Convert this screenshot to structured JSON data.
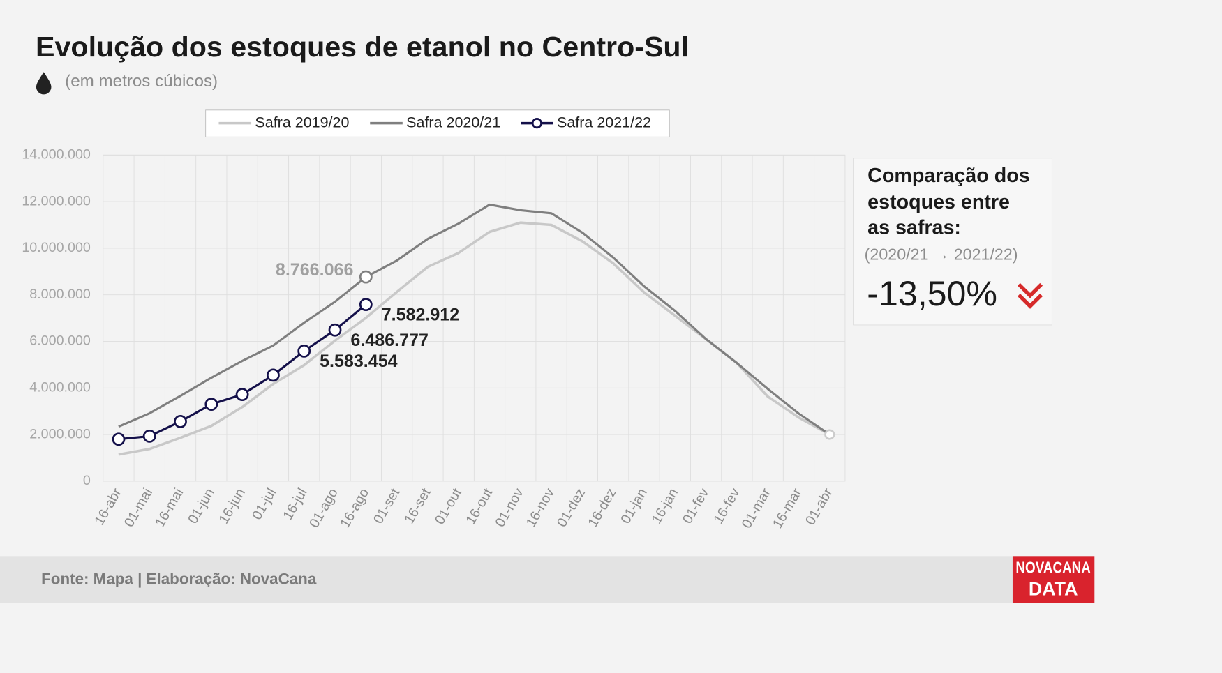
{
  "chart_data": {
    "type": "line",
    "title": "Evolução dos estoques de etanol no Centro-Sul",
    "subtitle": "(em metros cúbicos)",
    "categories": [
      "16-abr",
      "01-mai",
      "16-mai",
      "01-jun",
      "16-jun",
      "01-jul",
      "16-jul",
      "01-ago",
      "16-ago",
      "01-set",
      "16-set",
      "01-out",
      "16-out",
      "01-nov",
      "16-nov",
      "01-dez",
      "16-dez",
      "01-jan",
      "16-jan",
      "01-fev",
      "16-fev",
      "01-mar",
      "16-mar",
      "01-abr"
    ],
    "series": [
      {
        "name": "Safra 2019/20",
        "color": "#c8c8c8",
        "values": [
          1140000,
          1380000,
          1860000,
          2370000,
          3180000,
          4170000,
          4980000,
          6030000,
          7010000,
          8120000,
          9200000,
          9800000,
          10700000,
          11100000,
          11000000,
          10300000,
          9350000,
          8100000,
          7100000,
          6100000,
          5070000,
          3630000,
          2730000,
          2000000
        ]
      },
      {
        "name": "Safra 2020/21",
        "color": "#7f7f7f",
        "values": [
          2340000,
          2910000,
          3660000,
          4440000,
          5160000,
          5820000,
          6800000,
          7700000,
          8766066,
          9470000,
          10400000,
          11060000,
          11870000,
          11630000,
          11500000,
          10670000,
          9600000,
          8360000,
          7310000,
          6100000,
          5070000,
          3960000,
          2900000,
          2000000
        ],
        "value_labels": [
          null,
          null,
          null,
          null,
          null,
          null,
          null,
          null,
          "8.766.066",
          null,
          null,
          null,
          null,
          null,
          null,
          null,
          null,
          null,
          null,
          null,
          null,
          null,
          null,
          null
        ],
        "markers": [
          8,
          23
        ]
      },
      {
        "name": "Safra 2021/22",
        "color": "#14104a",
        "values": [
          1800000,
          1930000,
          2560000,
          3300000,
          3720000,
          4550000,
          5583454,
          6486777,
          7582912,
          null,
          null,
          null,
          null,
          null,
          null,
          null,
          null,
          null,
          null,
          null,
          null,
          null,
          null,
          null
        ],
        "value_labels": [
          null,
          null,
          null,
          null,
          null,
          null,
          "5.583.454",
          "6.486.777",
          "7.582.912",
          null,
          null,
          null,
          null,
          null,
          null,
          null,
          null,
          null,
          null,
          null,
          null,
          null,
          null,
          null
        ],
        "markers": [
          0,
          1,
          2,
          3,
          4,
          5,
          6,
          7,
          8
        ]
      }
    ],
    "ylim": [
      0,
      14000000
    ],
    "yticks": [
      0,
      {
        "value": 2000000,
        "label": "2.000.000"
      },
      {
        "value": 4000000,
        "label": "4.000.000"
      },
      {
        "value": 6000000,
        "label": "6.000.000"
      },
      {
        "value": 8000000,
        "label": "8.000.000"
      },
      {
        "value": 10000000,
        "label": "10.000.000"
      },
      {
        "value": 12000000,
        "label": "12.000.000"
      },
      {
        "value": 14000000,
        "label": "14.000.000"
      }
    ],
    "grid": true,
    "legend": "top",
    "comparison": {
      "title_lines": [
        "Comparação dos",
        "estoques entre",
        "as safras:"
      ],
      "period": "(2020/21 → 2021/22)",
      "value": "-13,50%"
    },
    "source": "Fonte: Mapa | Elaboração: NovaCana",
    "logo_lines": [
      "NOVACANA",
      "DATA"
    ]
  }
}
